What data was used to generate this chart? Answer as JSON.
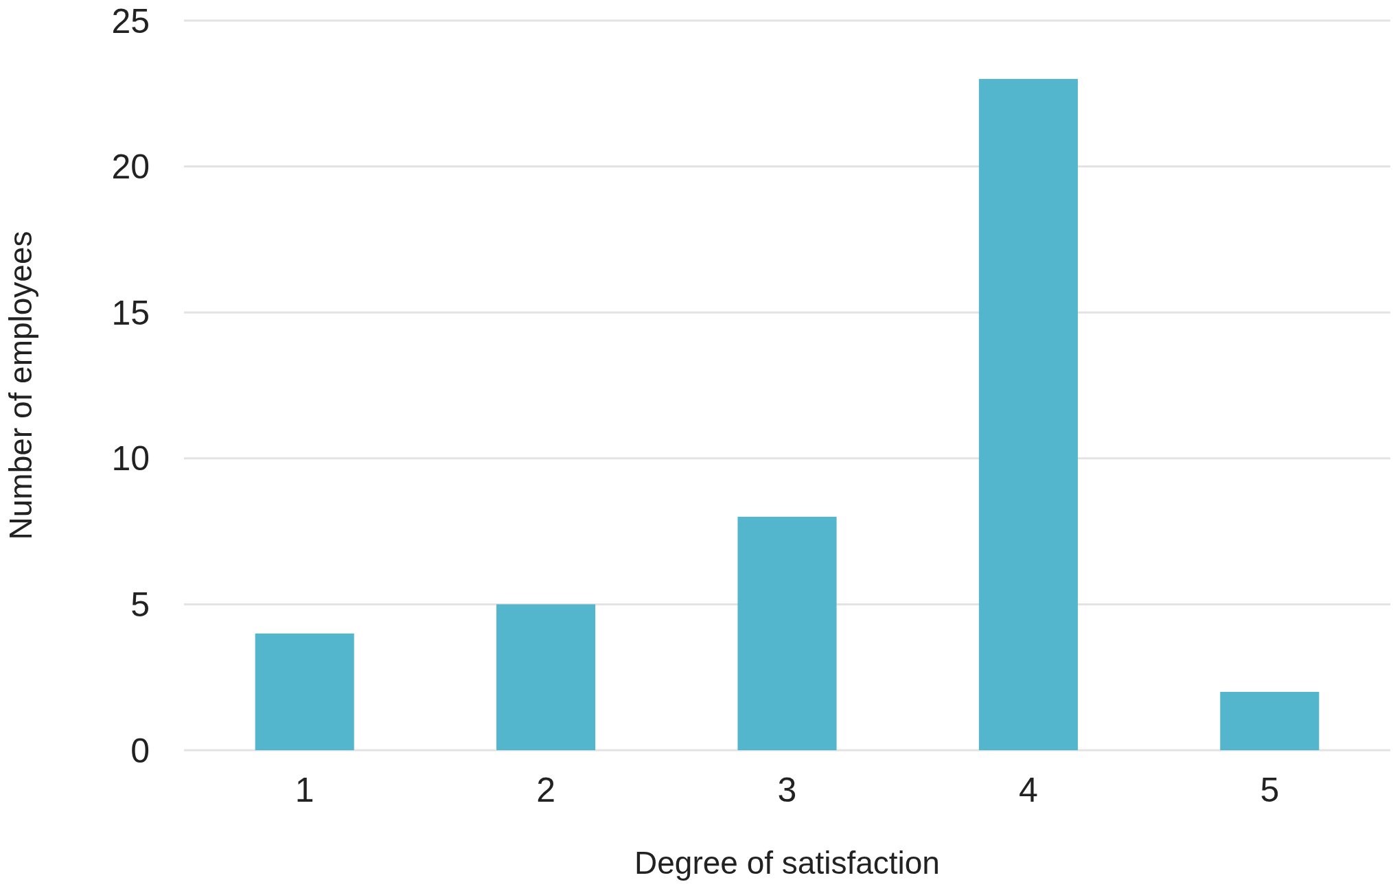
{
  "chart_data": {
    "type": "bar",
    "xlabel": "Degree of satisfaction",
    "ylabel": "Number of employees",
    "categories": [
      "1",
      "2",
      "3",
      "4",
      "5"
    ],
    "values": [
      4,
      5,
      8,
      23,
      2
    ],
    "color": "#54b6cc",
    "ylim": [
      0,
      25
    ],
    "yticks": [
      0,
      5,
      10,
      15,
      20,
      25
    ],
    "grid": "y"
  }
}
